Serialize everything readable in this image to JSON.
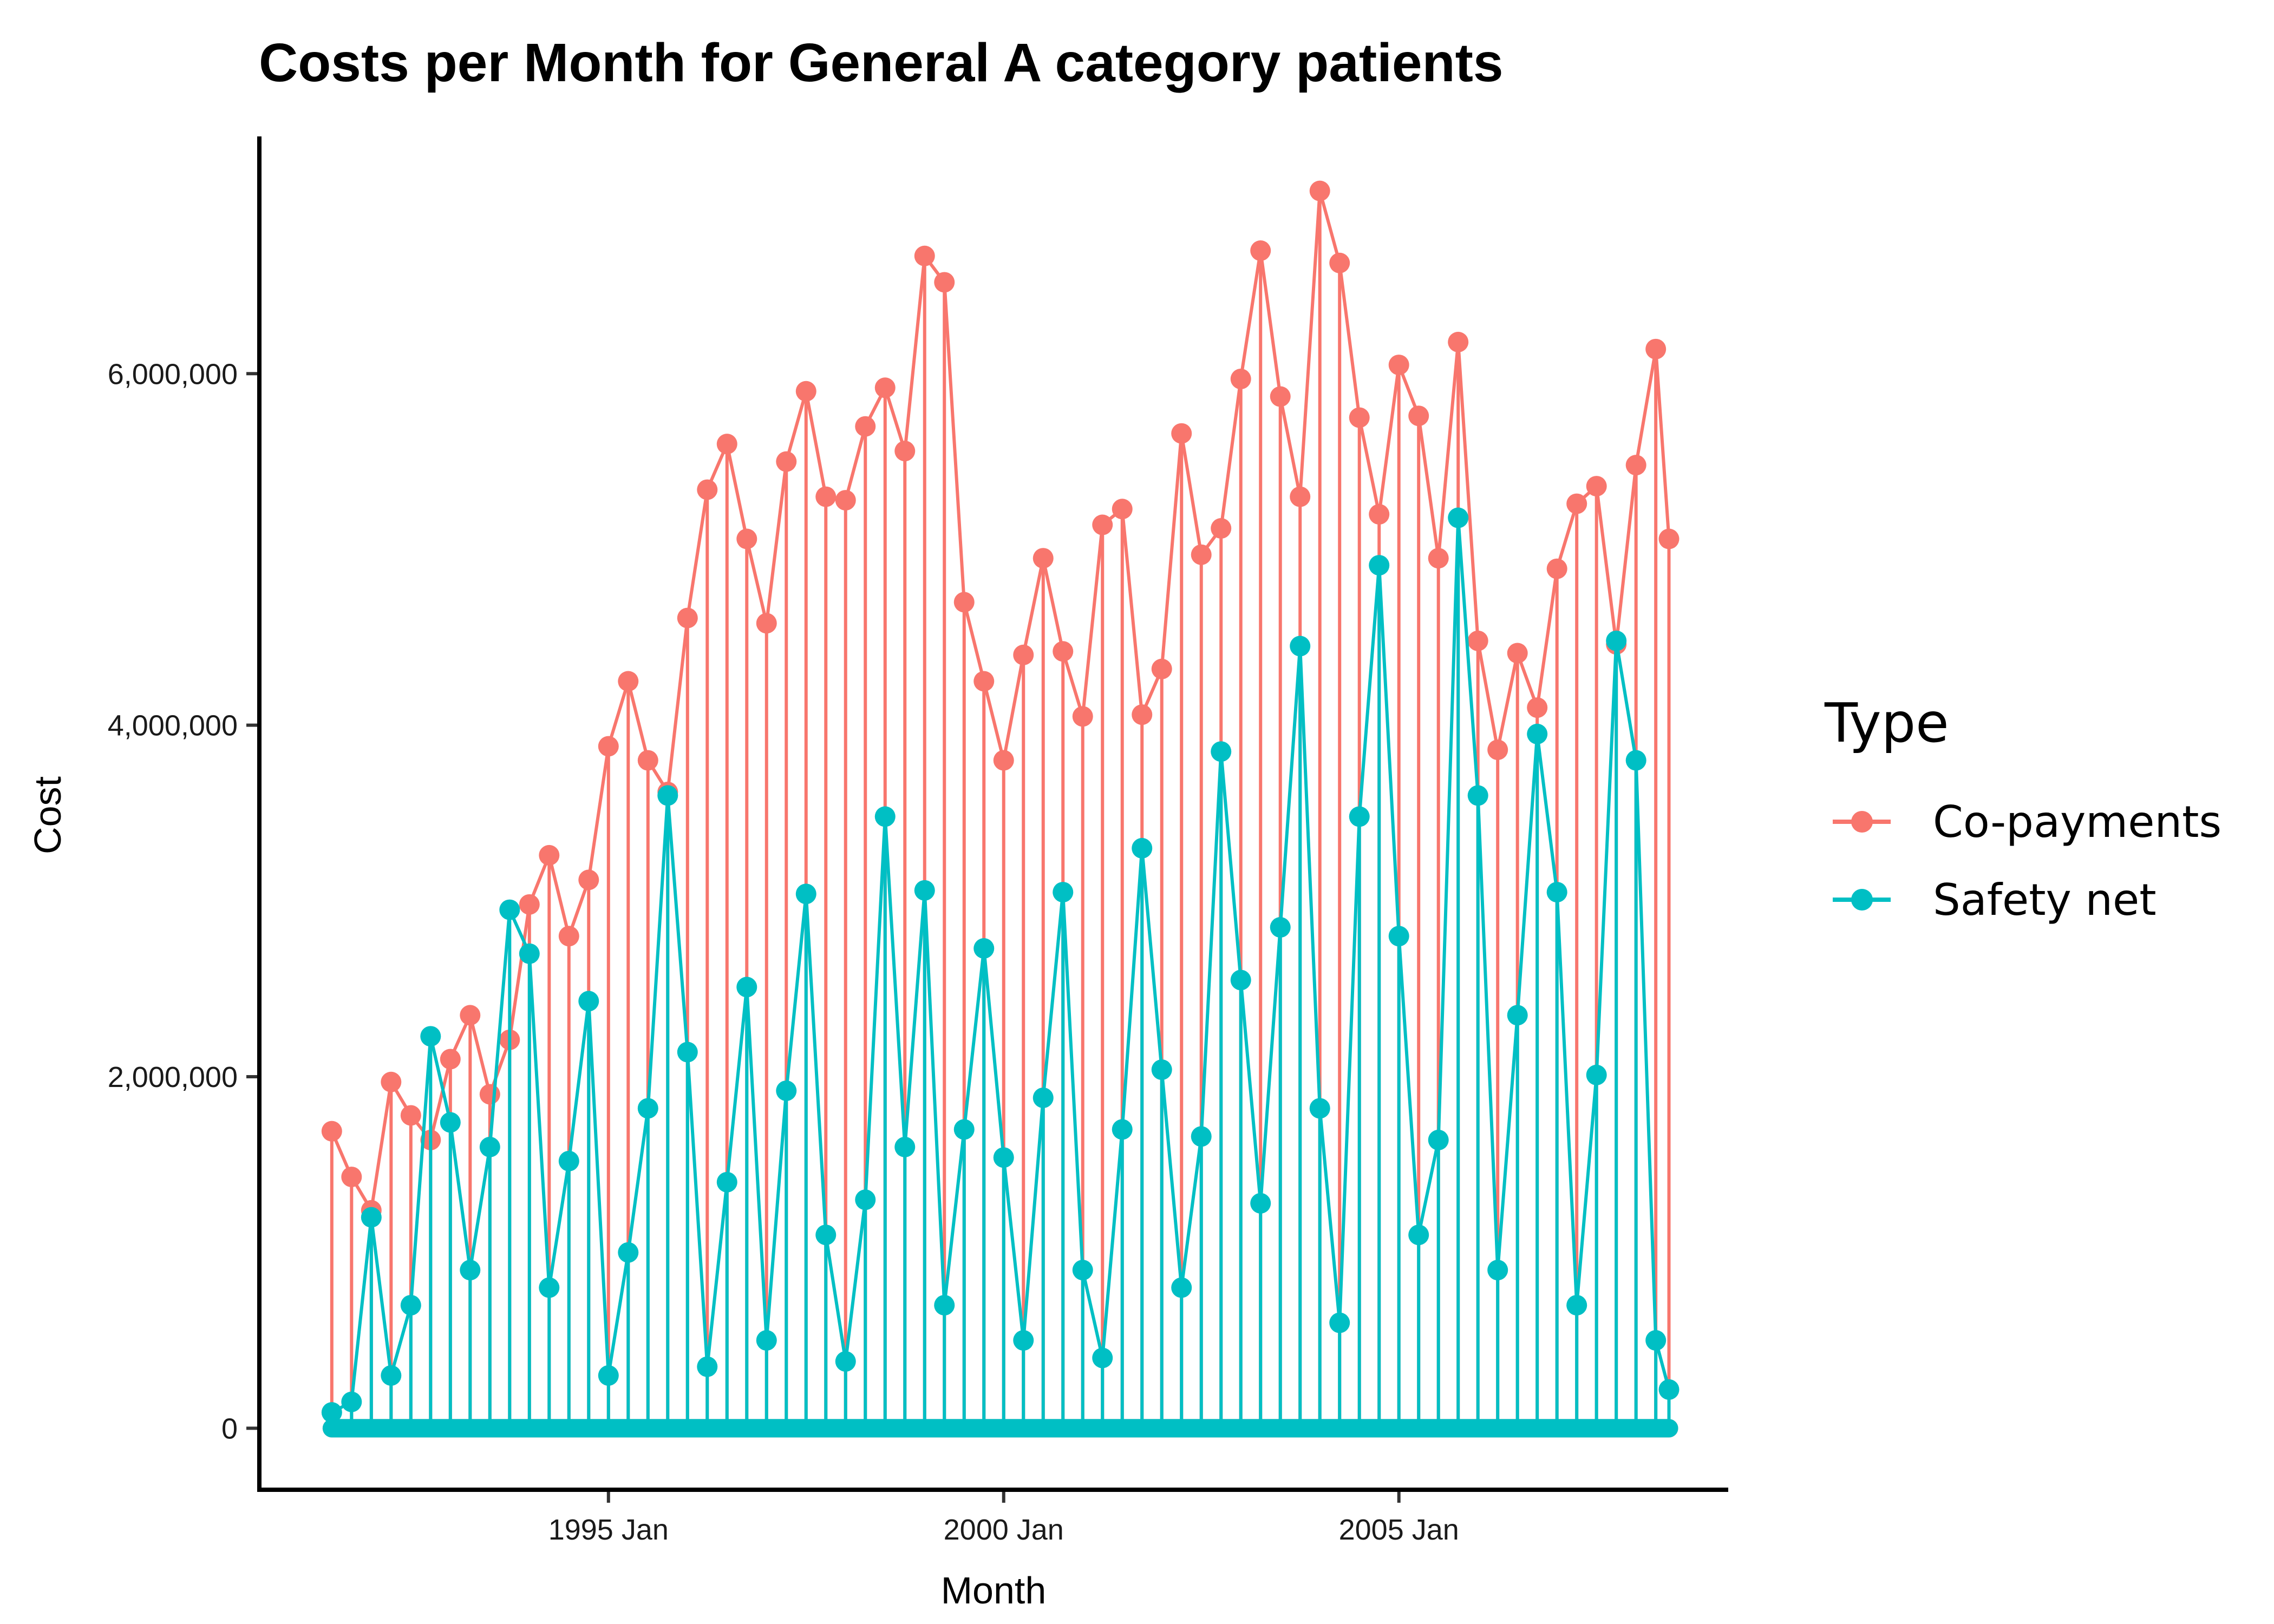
{
  "chart_data": {
    "type": "line",
    "title": "Costs per Month for General A category patients",
    "xlabel": "Month",
    "ylabel": "Cost",
    "x_ticks": [
      {
        "date": "1995-01",
        "label": "1995 Jan"
      },
      {
        "date": "2000-01",
        "label": "2000 Jan"
      },
      {
        "date": "2005-01",
        "label": "2005 Jan"
      }
    ],
    "y_ticks": [
      {
        "value": 0,
        "label": "0"
      },
      {
        "value": 2000000,
        "label": "2,000,000"
      },
      {
        "value": 4000000,
        "label": "4,000,000"
      },
      {
        "value": 6000000,
        "label": "6,000,000"
      }
    ],
    "xlim": [
      "1990-08",
      "2009-03"
    ],
    "ylim": [
      -350000,
      7350000
    ],
    "grid": false,
    "legend": {
      "title": "Type",
      "position": "right"
    },
    "series": [
      {
        "name": "Co-payments",
        "color": "#F8766D",
        "points": [
          [
            "1991-07",
            1690000
          ],
          [
            "1991-10",
            1430000
          ],
          [
            "1992-01",
            1240000
          ],
          [
            "1992-04",
            1970000
          ],
          [
            "1992-07",
            1780000
          ],
          [
            "1992-10",
            1640000
          ],
          [
            "1993-01",
            2100000
          ],
          [
            "1993-04",
            2350000
          ],
          [
            "1993-07",
            1900000
          ],
          [
            "1993-10",
            2210000
          ],
          [
            "1994-01",
            2980000
          ],
          [
            "1994-04",
            3260000
          ],
          [
            "1994-07",
            2800000
          ],
          [
            "1994-10",
            3120000
          ],
          [
            "1995-01",
            3880000
          ],
          [
            "1995-04",
            4250000
          ],
          [
            "1995-07",
            3800000
          ],
          [
            "1995-10",
            3620000
          ],
          [
            "1996-01",
            4610000
          ],
          [
            "1996-04",
            5340000
          ],
          [
            "1996-07",
            5600000
          ],
          [
            "1996-10",
            5060000
          ],
          [
            "1997-01",
            4580000
          ],
          [
            "1997-04",
            5500000
          ],
          [
            "1997-07",
            5900000
          ],
          [
            "1997-10",
            5300000
          ],
          [
            "1998-01",
            5280000
          ],
          [
            "1998-04",
            5700000
          ],
          [
            "1998-07",
            5920000
          ],
          [
            "1998-10",
            5560000
          ],
          [
            "1999-01",
            6670000
          ],
          [
            "1999-04",
            6520000
          ],
          [
            "1999-07",
            4700000
          ],
          [
            "1999-10",
            4250000
          ],
          [
            "2000-01",
            3800000
          ],
          [
            "2000-04",
            4400000
          ],
          [
            "2000-07",
            4950000
          ],
          [
            "2000-10",
            4420000
          ],
          [
            "2001-01",
            4050000
          ],
          [
            "2001-04",
            5140000
          ],
          [
            "2001-07",
            5230000
          ],
          [
            "2001-10",
            4060000
          ],
          [
            "2002-01",
            4320000
          ],
          [
            "2002-04",
            5660000
          ],
          [
            "2002-07",
            4970000
          ],
          [
            "2002-10",
            5120000
          ],
          [
            "2003-01",
            5970000
          ],
          [
            "2003-04",
            6700000
          ],
          [
            "2003-07",
            5870000
          ],
          [
            "2003-10",
            5300000
          ],
          [
            "2004-01",
            7040000
          ],
          [
            "2004-04",
            6630000
          ],
          [
            "2004-07",
            5750000
          ],
          [
            "2004-10",
            5200000
          ],
          [
            "2005-01",
            6050000
          ],
          [
            "2005-04",
            5760000
          ],
          [
            "2005-07",
            4950000
          ],
          [
            "2005-10",
            6180000
          ],
          [
            "2006-01",
            4480000
          ],
          [
            "2006-04",
            3860000
          ],
          [
            "2006-07",
            4410000
          ],
          [
            "2006-10",
            4100000
          ],
          [
            "2007-01",
            4890000
          ],
          [
            "2007-04",
            5260000
          ],
          [
            "2007-07",
            5360000
          ],
          [
            "2007-10",
            4460000
          ],
          [
            "2008-01",
            5480000
          ],
          [
            "2008-04",
            6140000
          ],
          [
            "2008-06",
            5060000
          ]
        ]
      },
      {
        "name": "Safety net",
        "color": "#00BFC4",
        "points": [
          [
            "1991-07",
            90000
          ],
          [
            "1991-10",
            150000
          ],
          [
            "1992-01",
            1200000
          ],
          [
            "1992-04",
            300000
          ],
          [
            "1992-07",
            700000
          ],
          [
            "1992-10",
            2230000
          ],
          [
            "1993-01",
            1740000
          ],
          [
            "1993-04",
            900000
          ],
          [
            "1993-07",
            1600000
          ],
          [
            "1993-10",
            2950000
          ],
          [
            "1994-01",
            2700000
          ],
          [
            "1994-04",
            800000
          ],
          [
            "1994-07",
            1520000
          ],
          [
            "1994-10",
            2430000
          ],
          [
            "1995-01",
            300000
          ],
          [
            "1995-04",
            1000000
          ],
          [
            "1995-07",
            1820000
          ],
          [
            "1995-10",
            3600000
          ],
          [
            "1996-01",
            2140000
          ],
          [
            "1996-04",
            350000
          ],
          [
            "1996-07",
            1400000
          ],
          [
            "1996-10",
            2510000
          ],
          [
            "1997-01",
            500000
          ],
          [
            "1997-04",
            1920000
          ],
          [
            "1997-07",
            3040000
          ],
          [
            "1997-10",
            1100000
          ],
          [
            "1998-01",
            380000
          ],
          [
            "1998-04",
            1300000
          ],
          [
            "1998-07",
            3480000
          ],
          [
            "1998-10",
            1600000
          ],
          [
            "1999-01",
            3060000
          ],
          [
            "1999-04",
            700000
          ],
          [
            "1999-07",
            1700000
          ],
          [
            "1999-10",
            2730000
          ],
          [
            "2000-01",
            1540000
          ],
          [
            "2000-04",
            500000
          ],
          [
            "2000-07",
            1880000
          ],
          [
            "2000-10",
            3050000
          ],
          [
            "2001-01",
            900000
          ],
          [
            "2001-04",
            400000
          ],
          [
            "2001-07",
            1700000
          ],
          [
            "2001-10",
            3300000
          ],
          [
            "2002-01",
            2040000
          ],
          [
            "2002-04",
            800000
          ],
          [
            "2002-07",
            1660000
          ],
          [
            "2002-10",
            3850000
          ],
          [
            "2003-01",
            2550000
          ],
          [
            "2003-04",
            1280000
          ],
          [
            "2003-07",
            2850000
          ],
          [
            "2003-10",
            4450000
          ],
          [
            "2004-01",
            1820000
          ],
          [
            "2004-04",
            600000
          ],
          [
            "2004-07",
            3480000
          ],
          [
            "2004-10",
            4910000
          ],
          [
            "2005-01",
            2800000
          ],
          [
            "2005-04",
            1100000
          ],
          [
            "2005-07",
            1640000
          ],
          [
            "2005-10",
            5180000
          ],
          [
            "2006-01",
            3600000
          ],
          [
            "2006-04",
            900000
          ],
          [
            "2006-07",
            2350000
          ],
          [
            "2006-10",
            3950000
          ],
          [
            "2007-01",
            3050000
          ],
          [
            "2007-04",
            700000
          ],
          [
            "2007-07",
            2010000
          ],
          [
            "2007-10",
            4480000
          ],
          [
            "2008-01",
            3800000
          ],
          [
            "2008-04",
            500000
          ],
          [
            "2008-06",
            220000
          ]
        ]
      }
    ]
  }
}
